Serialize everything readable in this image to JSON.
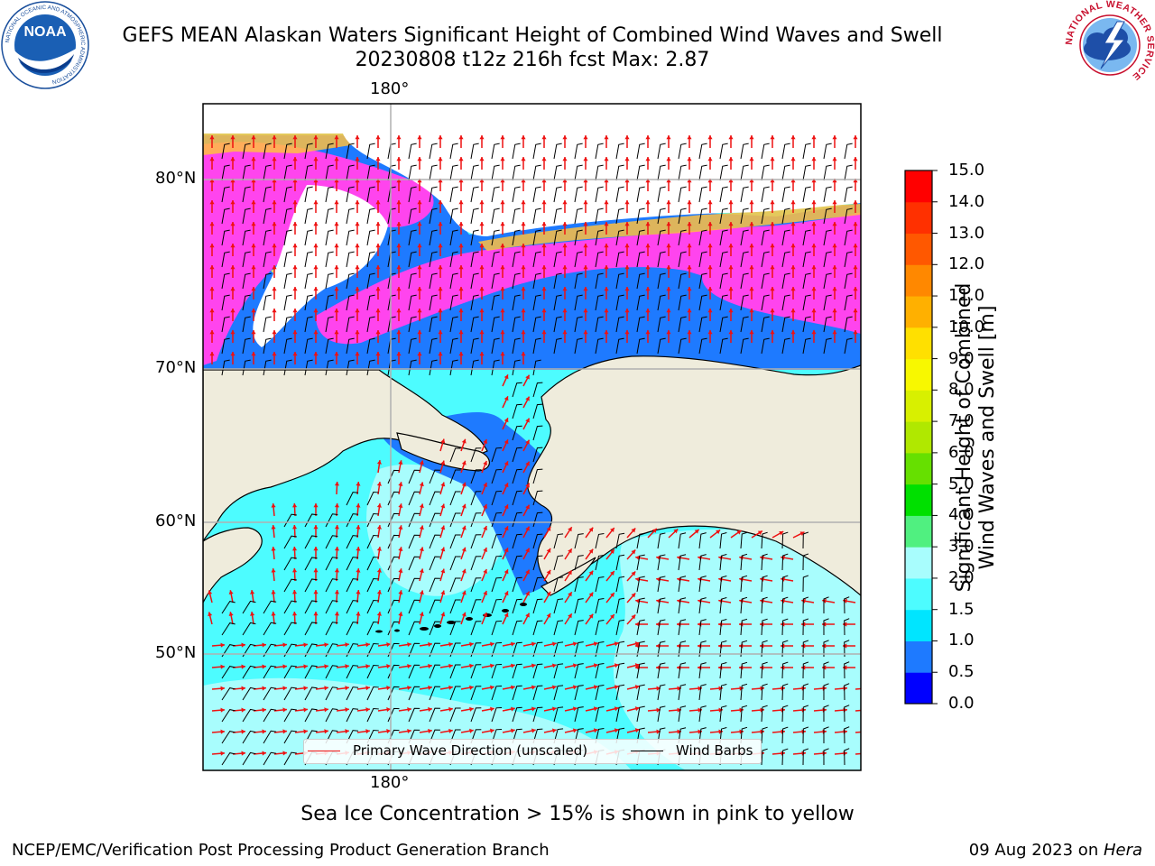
{
  "title_line1": "GEFS MEAN Alaskan Waters Significant Height of Combined Wind Waves and Swell",
  "title_line2": "20230808 t12z 216h fcst   Max: 2.87",
  "map": {
    "lon_label_top": "180°",
    "lon_label_bottom": "180°",
    "lat_labels": [
      "80°N",
      "70°N",
      "60°N",
      "50°N"
    ]
  },
  "colorbar": {
    "label_line1": "Significant Height of Combined",
    "label_line2": "Wind Waves and Swell [m]",
    "ticks": [
      "0.0",
      "0.5",
      "1.0",
      "1.5",
      "2.0",
      "3.0",
      "4.0",
      "5.0",
      "6.0",
      "7.0",
      "8.0",
      "9.0",
      "10.0",
      "11.0",
      "12.0",
      "13.0",
      "14.0",
      "15.0"
    ],
    "colors": [
      "#0000ff",
      "#1e7aff",
      "#00e5ff",
      "#4dfcff",
      "#a8fdfd",
      "#50f080",
      "#00e000",
      "#66e000",
      "#b0e800",
      "#d8f000",
      "#f8f800",
      "#ffe000",
      "#ffb000",
      "#ff8800",
      "#ff5800",
      "#ff3000",
      "#ff0000"
    ]
  },
  "legend": {
    "wave_label": "Primary Wave Direction (unscaled)",
    "wind_label": "Wind Barbs",
    "wave_color": "#ee1111",
    "wind_color": "#000000"
  },
  "colors": {
    "land": "#efecdc",
    "ice_pink": "#ff44ee",
    "ice_orange": "#ffc040",
    "ice_yellow": "#ffee60"
  },
  "note": "Sea Ice Concentration > 15% is shown in pink to yellow",
  "credit": "NCEP/EMC/Verification Post Processing Product Generation Branch",
  "date_prefix": "09 Aug 2023 on ",
  "date_machine": "Hera",
  "logos": {
    "left": "NOAA",
    "left_ring": "NATIONAL OCEANIC AND ATMOSPHERIC ADMINISTRATION",
    "left_bottom": "U.S. DEPARTMENT OF COMMERCE",
    "right_ring": "NATIONAL WEATHER SERVICE"
  }
}
